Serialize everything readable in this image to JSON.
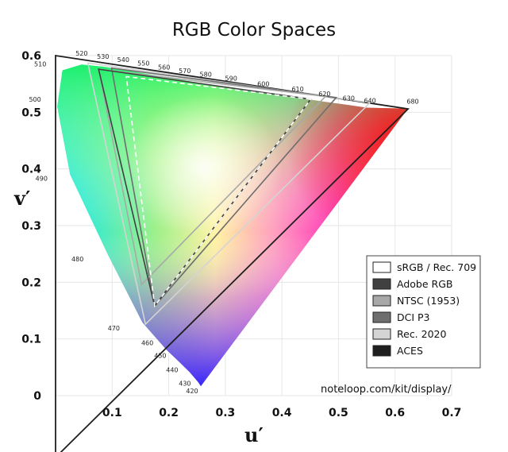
{
  "chart_data": {
    "type": "scatter",
    "title": "RGB Color Spaces",
    "xlabel": "u′",
    "ylabel": "v′",
    "xlim": [
      0,
      0.7
    ],
    "ylim": [
      0,
      0.6
    ],
    "xticks": [
      "0.1",
      "0.2",
      "0.3",
      "0.4",
      "0.5",
      "0.6",
      "0.7"
    ],
    "yticks": [
      "0",
      "0.1",
      "0.2",
      "0.3",
      "0.4",
      "0.5",
      "0.6"
    ],
    "grid": true,
    "legend_position": "lower-right",
    "spectral_locus": [
      {
        "label": "420",
        "u": 0.2567,
        "v": 0.0165
      },
      {
        "label": "430",
        "u": 0.2523,
        "v": 0.0233
      },
      {
        "label": "440",
        "u": 0.2369,
        "v": 0.0413
      },
      {
        "label": "450",
        "u": 0.2187,
        "v": 0.0593
      },
      {
        "label": "460",
        "u": 0.1958,
        "v": 0.0809
      },
      {
        "label": "470",
        "u": 0.1535,
        "v": 0.129
      },
      {
        "label": "480",
        "u": 0.0921,
        "v": 0.2493
      },
      {
        "label": "490",
        "u": 0.0257,
        "v": 0.3902
      },
      {
        "label": "500",
        "u": 0.0029,
        "v": 0.5101
      },
      {
        "label": "510",
        "u": 0.0122,
        "v": 0.5741
      },
      {
        "label": "520",
        "u": 0.0462,
        "v": 0.5843
      },
      {
        "label": "530",
        "u": 0.0839,
        "v": 0.5805
      },
      {
        "label": "540",
        "u": 0.1197,
        "v": 0.5747
      },
      {
        "label": "550",
        "u": 0.1554,
        "v": 0.5687
      },
      {
        "label": "560",
        "u": 0.1917,
        "v": 0.5626
      },
      {
        "label": "570",
        "u": 0.2284,
        "v": 0.5563
      },
      {
        "label": "580",
        "u": 0.2654,
        "v": 0.55
      },
      {
        "label": "590",
        "u": 0.3103,
        "v": 0.543
      },
      {
        "label": "600",
        "u": 0.3673,
        "v": 0.5345
      },
      {
        "label": "610",
        "u": 0.428,
        "v": 0.5255
      },
      {
        "label": "620",
        "u": 0.4754,
        "v": 0.5186
      },
      {
        "label": "630",
        "u": 0.5181,
        "v": 0.5126
      },
      {
        "label": "640",
        "u": 0.5501,
        "v": 0.5081
      },
      {
        "label": "680",
        "u": 0.6229,
        "v": 0.5065
      }
    ],
    "series": [
      {
        "name": "sRGB / Rec. 709",
        "color": "#ffffff",
        "style": "dashed",
        "points": [
          {
            "u": 0.451,
            "v": 0.523
          },
          {
            "u": 0.125,
            "v": 0.563
          },
          {
            "u": 0.175,
            "v": 0.158
          }
        ]
      },
      {
        "name": "Adobe RGB",
        "color": "#404040",
        "style": "solid",
        "points": [
          {
            "u": 0.451,
            "v": 0.523
          },
          {
            "u": 0.076,
            "v": 0.576
          },
          {
            "u": 0.175,
            "v": 0.158
          }
        ]
      },
      {
        "name": "NTSC (1953)",
        "color": "#a8a8a8",
        "style": "solid",
        "points": [
          {
            "u": 0.477,
            "v": 0.528
          },
          {
            "u": 0.076,
            "v": 0.576
          },
          {
            "u": 0.152,
            "v": 0.196
          }
        ]
      },
      {
        "name": "DCI P3",
        "color": "#6e6e6e",
        "style": "solid",
        "points": [
          {
            "u": 0.496,
            "v": 0.526
          },
          {
            "u": 0.099,
            "v": 0.578
          },
          {
            "u": 0.175,
            "v": 0.158
          }
        ]
      },
      {
        "name": "Rec. 2020",
        "color": "#d4d4d4",
        "style": "solid",
        "points": [
          {
            "u": 0.556,
            "v": 0.517
          },
          {
            "u": 0.057,
            "v": 0.587
          },
          {
            "u": 0.159,
            "v": 0.126
          }
        ]
      },
      {
        "name": "ACES",
        "color": "#1e1e1e",
        "style": "solid",
        "points": [
          {
            "u": 0.623,
            "v": 0.506
          },
          {
            "u": 0.0,
            "v": 0.6
          },
          {
            "u": 0.0,
            "v": -0.109
          }
        ]
      }
    ],
    "source": "noteloop.com/kit/display/"
  }
}
